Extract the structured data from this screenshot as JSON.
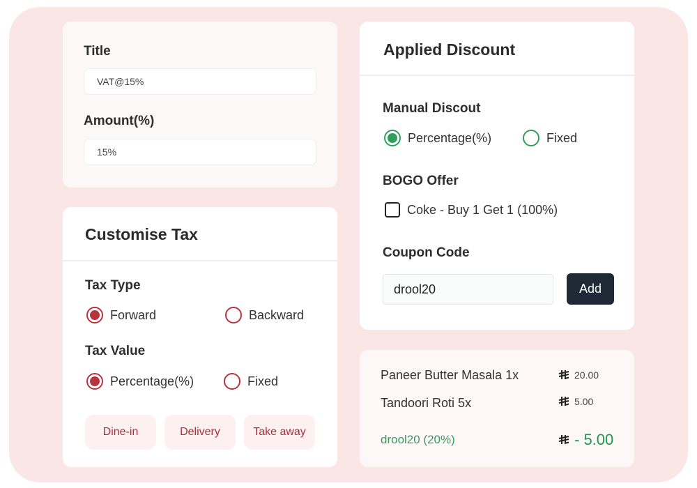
{
  "tax_form": {
    "title_label": "Title",
    "title_value": "VAT@15%",
    "amount_label": "Amount(%)",
    "amount_value": "15%"
  },
  "customise_tax": {
    "heading": "Customise Tax",
    "tax_type_label": "Tax Type",
    "tax_type_options": [
      "Forward",
      "Backward"
    ],
    "tax_type_selected": "Forward",
    "tax_value_label": "Tax Value",
    "tax_value_options": [
      "Percentage(%)",
      "Fixed"
    ],
    "tax_value_selected": "Percentage(%)",
    "order_types": [
      "Dine-in",
      "Delivery",
      "Take away"
    ]
  },
  "applied_discount": {
    "heading": "Applied Discount",
    "manual_label": "Manual Discout",
    "manual_options": [
      "Percentage(%)",
      "Fixed"
    ],
    "manual_selected": "Percentage(%)",
    "bogo_label": "BOGO Offer",
    "bogo_item": "Coke - Buy 1 Get 1 (100%)",
    "bogo_checked": false,
    "coupon_label": "Coupon Code",
    "coupon_value": "drool20",
    "add_label": "Add"
  },
  "summary": {
    "items": [
      {
        "name": "Paneer Butter Masala 1x",
        "price": "20.00"
      },
      {
        "name": "Tandoori Roti 5x",
        "price": "5.00"
      }
    ],
    "discount": {
      "label": "drool20 (20%)",
      "amount": "- 5.00"
    },
    "currency_icon": "saudi-riyal-icon"
  },
  "colors": {
    "accent_red": "#b8343d",
    "accent_green": "#2ea05a",
    "button_dark": "#1f2a36",
    "background": "#fbe6e6"
  }
}
